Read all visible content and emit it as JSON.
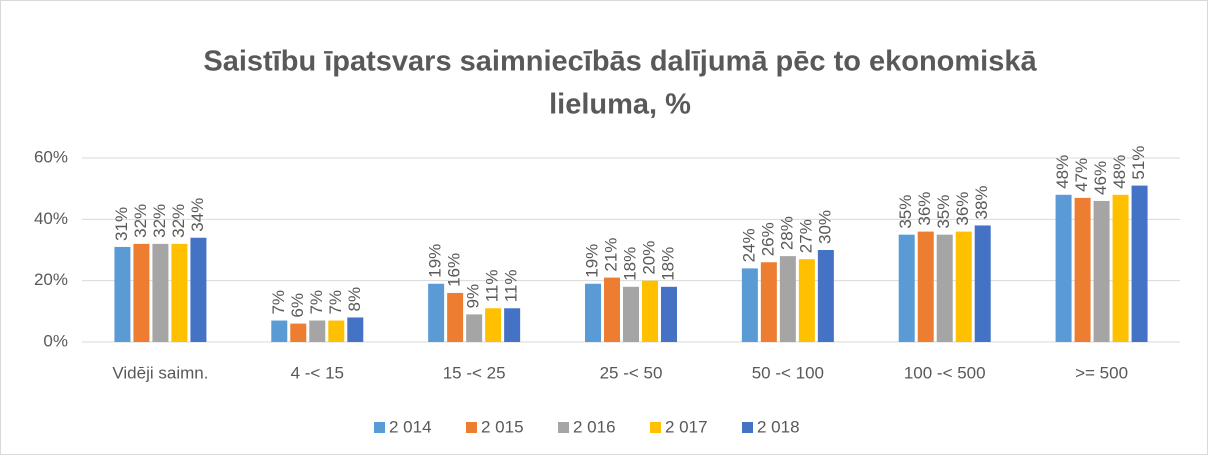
{
  "chart_data": {
    "type": "bar",
    "title": [
      "Saistību īpatsvars saimniecībās dalījumā pēc to ekonomiskā",
      "lieluma, %"
    ],
    "categories": [
      "Vidēji saimn.",
      "4 -< 15",
      "15 -< 25",
      "25 -< 50",
      "50 -< 100",
      "100 -< 500",
      ">= 500"
    ],
    "series": [
      {
        "name": "2 014",
        "color": "#5b9bd5",
        "values": [
          31,
          7,
          19,
          19,
          24,
          35,
          48
        ],
        "value_labels": [
          "31%",
          "7%",
          "19%",
          "19%",
          "24%",
          "35%",
          "48%"
        ]
      },
      {
        "name": "2 015",
        "color": "#ed7d31",
        "values": [
          32,
          6,
          16,
          21,
          26,
          36,
          47
        ],
        "value_labels": [
          "32%",
          "6%",
          "16%",
          "21%",
          "26%",
          "36%",
          "47%"
        ]
      },
      {
        "name": "2 016",
        "color": "#a5a5a5",
        "values": [
          32,
          7,
          9,
          18,
          28,
          35,
          46
        ],
        "value_labels": [
          "32%",
          "7%",
          "9%",
          "18%",
          "28%",
          "35%",
          "46%"
        ]
      },
      {
        "name": "2 017",
        "color": "#ffc000",
        "values": [
          32,
          7,
          11,
          20,
          27,
          36,
          48
        ],
        "value_labels": [
          "32%",
          "7%",
          "11%",
          "20%",
          "27%",
          "36%",
          "48%"
        ]
      },
      {
        "name": "2 018",
        "color": "#4472c4",
        "values": [
          34,
          8,
          11,
          18,
          30,
          38,
          51
        ],
        "value_labels": [
          "34%",
          "8%",
          "11%",
          "18%",
          "30%",
          "38%",
          "51%"
        ]
      }
    ],
    "ylim": [
      0,
      60
    ],
    "yticks": [
      {
        "value": 0,
        "label": "0%"
      },
      {
        "value": 20,
        "label": "20%"
      },
      {
        "value": 40,
        "label": "40%"
      },
      {
        "value": 60,
        "label": "60%"
      }
    ],
    "grid": true,
    "legend": "bottom"
  }
}
